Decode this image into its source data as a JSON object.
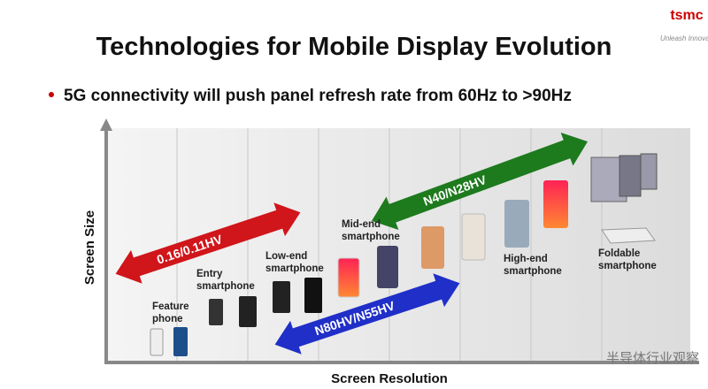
{
  "header": {
    "logo": "tsmc",
    "tagline": "Unleash Innovat",
    "title": "Technologies for Mobile Display Evolution"
  },
  "bullet": "5G connectivity will push panel refresh rate from 60Hz to >90Hz",
  "diagram": {
    "y_axis_label": "Screen Size",
    "x_axis_label": "Screen Resolution",
    "arrows": [
      {
        "label": "0.16/0.11HV"
      },
      {
        "label": "N40/N28HV"
      },
      {
        "label": "N80HV/N55HV"
      }
    ],
    "devices": [
      {
        "label": [
          "Feature",
          "phone"
        ]
      },
      {
        "label": [
          "Entry",
          "smartphone"
        ]
      },
      {
        "label": [
          "Low-end",
          "smartphone"
        ]
      },
      {
        "label": [
          "Mid-end",
          "smartphone"
        ]
      },
      {
        "label": [
          "High-end",
          "smartphone"
        ]
      },
      {
        "label": [
          "Foldable",
          "smartphone"
        ]
      }
    ]
  },
  "watermark": "半导体行业观察"
}
